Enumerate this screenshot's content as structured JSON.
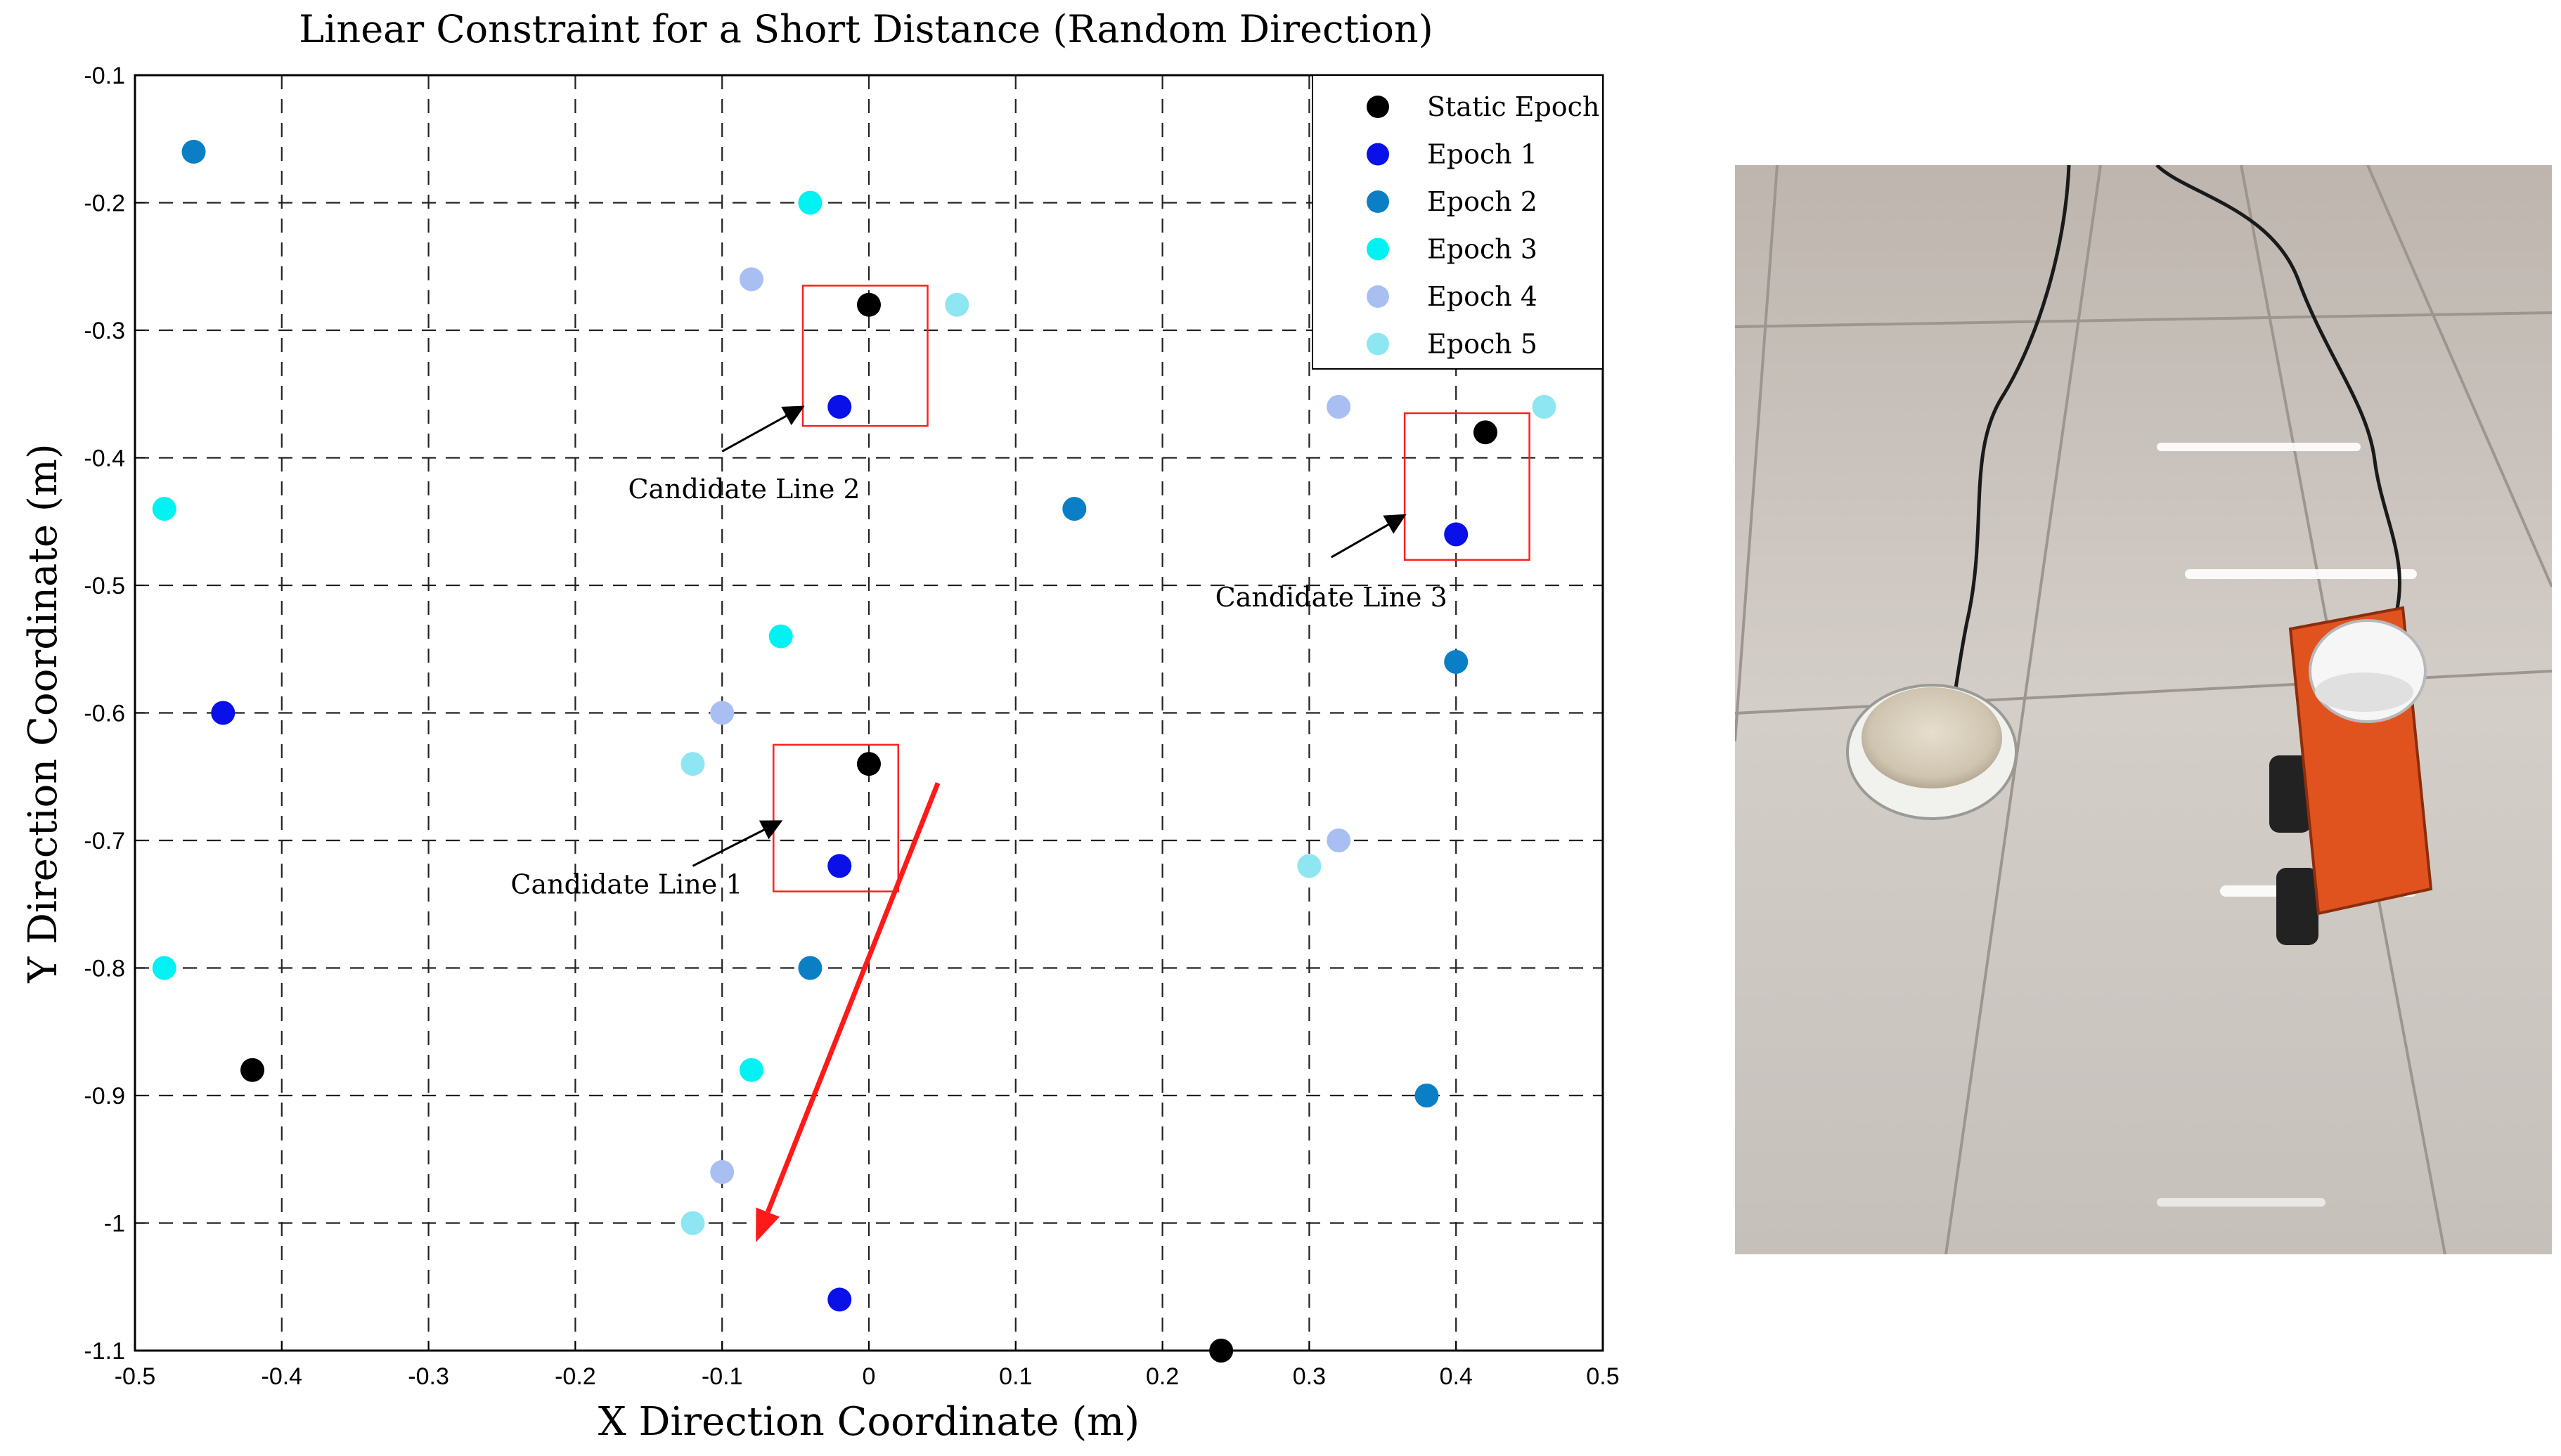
{
  "chart_data": {
    "type": "scatter",
    "title": "Linear Constraint for a Short Distance (Random Direction)",
    "xlabel": "X Direction Coordinate (m)",
    "ylabel": "Y Direction Coordinate (m)",
    "xlim": [
      -0.5,
      0.5
    ],
    "ylim": [
      -1.1,
      -0.1
    ],
    "grid": true,
    "legend_position": "top-right",
    "x_ticks": [
      -0.5,
      -0.4,
      -0.3,
      -0.2,
      -0.1,
      0,
      0.1,
      0.2,
      0.3,
      0.4,
      0.5
    ],
    "x_tick_labels": [
      "-0.5",
      "-0.4",
      "-0.3",
      "-0.2",
      "-0.1",
      "0",
      "0.1",
      "0.2",
      "0.3",
      "0.4",
      "0.5"
    ],
    "y_ticks": [
      -0.1,
      -0.2,
      -0.3,
      -0.4,
      -0.5,
      -0.6,
      -0.7,
      -0.8,
      -0.9,
      -1,
      -1.1
    ],
    "y_tick_labels": [
      "-0.1",
      "-0.2",
      "-0.3",
      "-0.4",
      "-0.5",
      "-0.6",
      "-0.7",
      "-0.8",
      "-0.9",
      "-1",
      "-1.1"
    ],
    "series": [
      {
        "name": "Static Epoch",
        "color": "#000000",
        "points": [
          [
            0,
            -0.28
          ],
          [
            0.42,
            -0.38
          ],
          [
            0,
            -0.64
          ],
          [
            -0.42,
            -0.88
          ],
          [
            0.24,
            -1.1
          ]
        ]
      },
      {
        "name": "Epoch 1",
        "color": "#0a10e8",
        "points": [
          [
            -0.02,
            -0.36
          ],
          [
            0.4,
            -0.46
          ],
          [
            -0.44,
            -0.6
          ],
          [
            -0.02,
            -0.72
          ],
          [
            -0.02,
            -1.06
          ]
        ]
      },
      {
        "name": "Epoch 2",
        "color": "#0b7fc5",
        "points": [
          [
            -0.46,
            -0.16
          ],
          [
            0.14,
            -0.44
          ],
          [
            0.4,
            -0.56
          ],
          [
            -0.04,
            -0.8
          ],
          [
            0.38,
            -0.9
          ]
        ]
      },
      {
        "name": "Epoch 3",
        "color": "#00f2f2",
        "points": [
          [
            -0.04,
            -0.2
          ],
          [
            -0.48,
            -0.44
          ],
          [
            -0.06,
            -0.54
          ],
          [
            -0.48,
            -0.8
          ],
          [
            -0.08,
            -0.88
          ]
        ]
      },
      {
        "name": "Epoch 4",
        "color": "#a9bff2",
        "points": [
          [
            -0.08,
            -0.26
          ],
          [
            0.32,
            -0.36
          ],
          [
            -0.1,
            -0.6
          ],
          [
            0.32,
            -0.7
          ],
          [
            -0.1,
            -0.96
          ]
        ]
      },
      {
        "name": "Epoch 5",
        "color": "#8ee6f2",
        "points": [
          [
            0.06,
            -0.28
          ],
          [
            0.46,
            -0.36
          ],
          [
            -0.12,
            -0.64
          ],
          [
            0.3,
            -0.72
          ],
          [
            -0.12,
            -1.0
          ]
        ]
      }
    ],
    "highlight_boxes": [
      {
        "x": [
          -0.045,
          0.04
        ],
        "y": [
          -0.375,
          -0.265
        ]
      },
      {
        "x": [
          0.365,
          0.45
        ],
        "y": [
          -0.48,
          -0.365
        ]
      },
      {
        "x": [
          -0.065,
          0.02
        ],
        "y": [
          -0.74,
          -0.625
        ]
      }
    ],
    "annotations": [
      {
        "text": "Candidate Line 2",
        "label_at": [
          -0.085,
          -0.425
        ],
        "from": [
          -0.1,
          -0.395
        ],
        "to": [
          -0.045,
          -0.36
        ]
      },
      {
        "text": "Candidate Line 3",
        "label_at": [
          0.315,
          -0.51
        ],
        "from": [
          0.315,
          -0.478
        ],
        "to": [
          0.365,
          -0.445
        ]
      },
      {
        "text": "Candidate Line 1",
        "label_at": [
          -0.165,
          -0.735
        ],
        "from": [
          -0.12,
          -0.72
        ],
        "to": [
          -0.06,
          -0.685
        ]
      }
    ],
    "direction_arrow": {
      "color": "#ff1a1a",
      "from": [
        0.047,
        -0.655
      ],
      "to": [
        -0.077,
        -1.015
      ]
    }
  },
  "photo": {
    "subject": "GNSS antennas on reflective tiled floor",
    "colors": {
      "floor": "#cfc9c4",
      "rover": "#e0531f",
      "antenna": "#f4f4f4",
      "cable": "#1a1a1a"
    }
  }
}
